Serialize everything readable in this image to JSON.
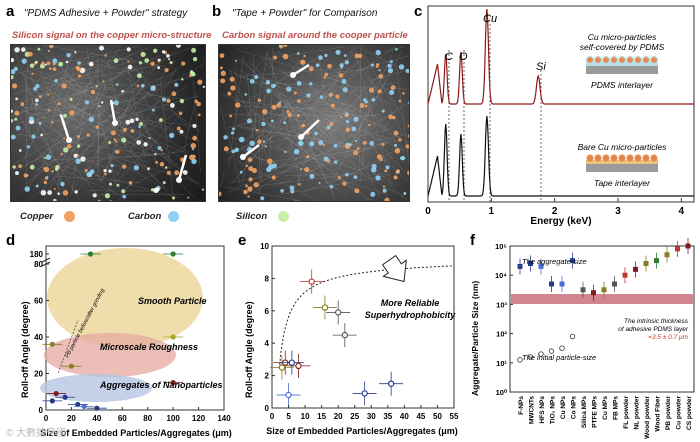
{
  "panels": {
    "a": {
      "label": "a",
      "title": "\"PDMS Adhesive + Powder\" strategy",
      "subtitle": "Silicon signal on the copper micro-structure"
    },
    "b": {
      "label": "b",
      "title": "\"Tape + Powder\" for Comparison",
      "subtitle": "Carbon signal around the cooper particle"
    },
    "c": {
      "label": "c"
    },
    "d": {
      "label": "d"
    },
    "e": {
      "label": "e"
    },
    "f": {
      "label": "f"
    }
  },
  "legend_ab": {
    "copper": "Copper",
    "carbon": "Carbon",
    "silicon": "Silicon",
    "colors": {
      "copper": "#f4a261",
      "carbon": "#8fd3f4",
      "silicon": "#c8f0a8"
    }
  },
  "panel_c": {
    "peaks": {
      "c": "C",
      "o": "O",
      "cu": "Cu",
      "si": "Si"
    },
    "top_label_1": "Cu micro-particles",
    "top_label_2": "self-covered by PDMS",
    "top_label_3": "PDMS interlayer",
    "bottom_label_1": "Bare Cu micro-particles",
    "bottom_label_2": "Tape interlayer",
    "xlabel": "Energy (keV)",
    "xticks": [
      "0",
      "1",
      "2",
      "3",
      "4"
    ],
    "colors": {
      "top": "#8b1a1a",
      "bottom": "#111111"
    }
  },
  "panel_d": {
    "ylabel": "Roll-off Angle (degree)",
    "xlabel": "Size of Embedded Particles/Aggregates (μm)",
    "yticks": [
      "0",
      "20",
      "40",
      "60",
      "80",
      "180"
    ],
    "xticks": [
      "0",
      "20",
      "40",
      "60",
      "80",
      "100",
      "120",
      "140"
    ],
    "regions": {
      "smooth": "Smooth Particle",
      "micro": "Microscale Roughness",
      "nano": "Aggregates of Nanoparticles"
    },
    "arrow_label": "PB particle before/after grinding"
  },
  "panel_e": {
    "ylabel": "Roll-off Angle (degree)",
    "xlabel": "Size of Embedded Particles/Aggregates (μm)",
    "yticks": [
      "0",
      "2",
      "4",
      "6",
      "8",
      "10"
    ],
    "xticks": [
      "0",
      "5",
      "10",
      "15",
      "20",
      "25",
      "30",
      "35",
      "40",
      "45",
      "50",
      "55"
    ],
    "note_1": "More Reliable",
    "note_2": "Superhydrophobicity"
  },
  "panel_f": {
    "ylabel": "Aggregate/Particle Size (nm)",
    "yticks": [
      "10⁰",
      "10¹",
      "10²",
      "10³",
      "10⁴",
      "10⁵"
    ],
    "note_agg": "The aggregate-size",
    "note_init": "The initial particle-size",
    "band_1": "The intrinsic thickness",
    "band_2": "of adhesive PDMS layer",
    "band_3": "=3.5 ± 0.7 μm",
    "categories": [
      "F-NPs",
      "MWCNTs",
      "HFS NPs",
      "TiO₂ NPs",
      "Cu NPs",
      "Co NPs",
      "Silica MPs",
      "PTFE MPs",
      "Cu MPs",
      "FB MPs",
      "FL powder",
      "NL powder",
      "Wood powder",
      "Wood Fiber",
      "PB powder",
      "Cu powder",
      "CS powder"
    ],
    "band_color": "#c9707a"
  },
  "watermark": "© 大數據帝國"
}
